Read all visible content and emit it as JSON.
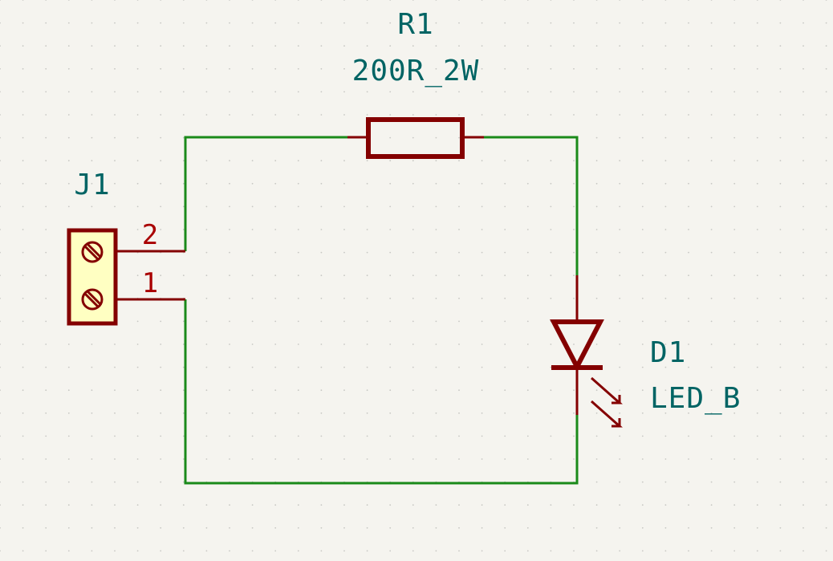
{
  "colors": {
    "background": "#f5f4ef",
    "grid_dot": "#c8c8c4",
    "wire": "#1a8a1a",
    "symbol": "#840000",
    "connector_fill": "#ffffc2",
    "reference_text": "#006464",
    "pin_number": "#a90000"
  },
  "components": {
    "r1": {
      "reference": "R1",
      "value": "200R_2W"
    },
    "j1": {
      "reference": "J1",
      "pin_2": "2",
      "pin_1": "1"
    },
    "d1": {
      "reference": "D1",
      "value": "LED_B"
    }
  }
}
